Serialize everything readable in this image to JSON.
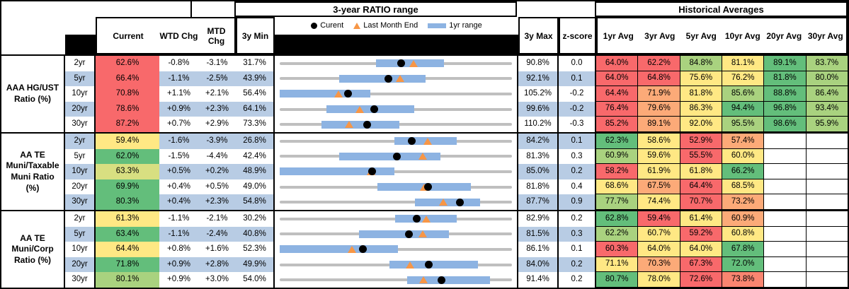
{
  "header": {
    "chart_group_title": "3-year RATIO range",
    "hist_group_title": "Historical Averages",
    "col_current": "Current",
    "col_wtd": "WTD Chg",
    "col_mtd": "MTD Chg",
    "col_3y_min": "3y Min",
    "col_3y_max": "3y Max",
    "col_zscore": "z-score",
    "avg_cols": [
      "1yr Avg",
      "3yr Avg",
      "5yr Avg",
      "10yr Avg",
      "20yr Avg",
      "30yr Avg"
    ],
    "legend": {
      "current_label": "Curent",
      "last_month_label": "Last Month End",
      "range_label": "1yr range"
    }
  },
  "colors": {
    "heatmap": {
      "red": "#f8696b",
      "orangered": "#f98570",
      "orange": "#fcaa78",
      "yellow": "#ffe884",
      "ygreen": "#d8df81",
      "lgreen": "#a9d27f",
      "green": "#63be7b"
    },
    "stripe": "#b8cce4",
    "track_gray": "#bfbfbf",
    "range_bar_blue": "#8db3e2",
    "triangle_orange": "#f79646",
    "marker_black": "#000000"
  },
  "chart_data": {
    "type": "table",
    "note": "Each row has a dot plot: axis spans chart.min..chart.max (3y range); bar = 1yr range (r1s..r1e); dot = current (cur); triangle = last month end (lme). Values in percent.",
    "groups": [
      {
        "label": "AAA HG/UST Ratio (%)",
        "label_lines": [
          "AAA HG/UST",
          "Ratio (%)"
        ],
        "rows": [
          {
            "tenor": "2yr",
            "current": "62.6%",
            "current_color": "red",
            "wtd": "-0.8%",
            "mtd": "-3.1%",
            "min": "31.7%",
            "max": "90.8%",
            "z": "0.0",
            "chart": {
              "min": 31.7,
              "max": 90.8,
              "cur": 62.6,
              "lme": 65.7,
              "r1s": 56.2,
              "r1e": 73.5
            },
            "avgs": [
              {
                "v": "64.0%",
                "c": "red"
              },
              {
                "v": "62.2%",
                "c": "red"
              },
              {
                "v": "84.8%",
                "c": "lgreen"
              },
              {
                "v": "81.1%",
                "c": "yellow"
              },
              {
                "v": "89.1%",
                "c": "green"
              },
              {
                "v": "83.7%",
                "c": "lgreen"
              }
            ]
          },
          {
            "tenor": "5yr",
            "current": "66.4%",
            "current_color": "red",
            "wtd": "-1.1%",
            "mtd": "-2.5%",
            "min": "43.9%",
            "max": "92.1%",
            "z": "0.1",
            "chart": {
              "min": 43.9,
              "max": 92.1,
              "cur": 66.4,
              "lme": 68.9,
              "r1s": 56.2,
              "r1e": 74.2
            },
            "avgs": [
              {
                "v": "64.0%",
                "c": "red"
              },
              {
                "v": "64.8%",
                "c": "red"
              },
              {
                "v": "75.6%",
                "c": "yellow"
              },
              {
                "v": "76.2%",
                "c": "yellow"
              },
              {
                "v": "81.8%",
                "c": "green"
              },
              {
                "v": "80.0%",
                "c": "lgreen"
              }
            ]
          },
          {
            "tenor": "10yr",
            "current": "70.8%",
            "current_color": "red",
            "wtd": "+1.1%",
            "mtd": "+2.1%",
            "min": "56.4%",
            "max": "105.2%",
            "z": "-0.2",
            "chart": {
              "min": 56.4,
              "max": 105.2,
              "cur": 70.8,
              "lme": 68.7,
              "r1s": 56.4,
              "r1e": 75.4
            },
            "avgs": [
              {
                "v": "64.4%",
                "c": "red"
              },
              {
                "v": "71.9%",
                "c": "orange"
              },
              {
                "v": "81.8%",
                "c": "yellow"
              },
              {
                "v": "85.6%",
                "c": "lgreen"
              },
              {
                "v": "88.8%",
                "c": "green"
              },
              {
                "v": "86.4%",
                "c": "lgreen"
              }
            ]
          },
          {
            "tenor": "20yr",
            "current": "78.6%",
            "current_color": "red",
            "wtd": "+0.9%",
            "mtd": "+2.3%",
            "min": "64.1%",
            "max": "99.6%",
            "z": "-0.2",
            "chart": {
              "min": 64.1,
              "max": 99.6,
              "cur": 78.6,
              "lme": 76.3,
              "r1s": 71.2,
              "r1e": 84.7
            },
            "avgs": [
              {
                "v": "76.4%",
                "c": "red"
              },
              {
                "v": "79.6%",
                "c": "orange"
              },
              {
                "v": "86.3%",
                "c": "yellow"
              },
              {
                "v": "94.4%",
                "c": "green"
              },
              {
                "v": "96.8%",
                "c": "green"
              },
              {
                "v": "93.4%",
                "c": "lgreen"
              }
            ]
          },
          {
            "tenor": "30yr",
            "current": "87.2%",
            "current_color": "red",
            "wtd": "+0.7%",
            "mtd": "+2.9%",
            "min": "73.3%",
            "max": "110.2%",
            "z": "-0.3",
            "chart": {
              "min": 73.3,
              "max": 110.2,
              "cur": 87.2,
              "lme": 84.3,
              "r1s": 80.0,
              "r1e": 92.3
            },
            "avgs": [
              {
                "v": "85.2%",
                "c": "red"
              },
              {
                "v": "89.1%",
                "c": "orange"
              },
              {
                "v": "92.0%",
                "c": "yellow"
              },
              {
                "v": "95.5%",
                "c": "lgreen"
              },
              {
                "v": "98.6%",
                "c": "green"
              },
              {
                "v": "95.9%",
                "c": "lgreen"
              }
            ]
          }
        ]
      },
      {
        "label": "AA TE Muni/Taxable Muni Ratio (%)",
        "label_lines": [
          "AA TE",
          "Muni/Taxable",
          "Muni Ratio",
          "(%)"
        ],
        "rows": [
          {
            "tenor": "2yr",
            "current": "59.4%",
            "current_color": "yellow",
            "wtd": "-1.6%",
            "mtd": "-3.9%",
            "min": "26.8%",
            "max": "84.2%",
            "z": "0.1",
            "chart": {
              "min": 26.8,
              "max": 84.2,
              "cur": 59.4,
              "lme": 63.3,
              "r1s": 55.2,
              "r1e": 70.5
            },
            "avgs": [
              {
                "v": "62.3%",
                "c": "green"
              },
              {
                "v": "58.6%",
                "c": "yellow"
              },
              {
                "v": "52.9%",
                "c": "red"
              },
              {
                "v": "57.4%",
                "c": "orange"
              },
              null,
              null
            ]
          },
          {
            "tenor": "5yr",
            "current": "62.0%",
            "current_color": "green",
            "wtd": "-1.5%",
            "mtd": "-4.4%",
            "min": "42.4%",
            "max": "81.3%",
            "z": "0.3",
            "chart": {
              "min": 42.4,
              "max": 81.3,
              "cur": 62.0,
              "lme": 66.4,
              "r1s": 52.4,
              "r1e": 69.3
            },
            "avgs": [
              {
                "v": "60.9%",
                "c": "lgreen"
              },
              {
                "v": "59.6%",
                "c": "yellow"
              },
              {
                "v": "55.5%",
                "c": "red"
              },
              {
                "v": "60.0%",
                "c": "yellow"
              },
              null,
              null
            ]
          },
          {
            "tenor": "10yr",
            "current": "63.3%",
            "current_color": "ygreen",
            "wtd": "+0.5%",
            "mtd": "+0.2%",
            "min": "48.9%",
            "max": "85.0%",
            "z": "0.2",
            "chart": {
              "min": 48.9,
              "max": 85.0,
              "cur": 63.3,
              "lme": 63.1,
              "r1s": 48.9,
              "r1e": 66.7
            },
            "avgs": [
              {
                "v": "58.2%",
                "c": "red"
              },
              {
                "v": "61.9%",
                "c": "yellow"
              },
              {
                "v": "61.8%",
                "c": "yellow"
              },
              {
                "v": "66.2%",
                "c": "green"
              },
              null,
              null
            ]
          },
          {
            "tenor": "20yr",
            "current": "69.9%",
            "current_color": "green",
            "wtd": "+0.4%",
            "mtd": "+0.5%",
            "min": "49.0%",
            "max": "81.8%",
            "z": "0.4",
            "chart": {
              "min": 49.0,
              "max": 81.8,
              "cur": 69.9,
              "lme": 69.4,
              "r1s": 62.8,
              "r1e": 76.0
            },
            "avgs": [
              {
                "v": "68.6%",
                "c": "yellow"
              },
              {
                "v": "67.5%",
                "c": "orange"
              },
              {
                "v": "64.4%",
                "c": "red"
              },
              {
                "v": "68.5%",
                "c": "yellow"
              },
              null,
              null
            ]
          },
          {
            "tenor": "30yr",
            "current": "80.3%",
            "current_color": "green",
            "wtd": "+0.4%",
            "mtd": "+2.3%",
            "min": "54.8%",
            "max": "87.7%",
            "z": "0.9",
            "chart": {
              "min": 54.8,
              "max": 87.7,
              "cur": 80.3,
              "lme": 78.0,
              "r1s": 74.0,
              "r1e": 83.2
            },
            "avgs": [
              {
                "v": "77.7%",
                "c": "lgreen"
              },
              {
                "v": "74.4%",
                "c": "yellow"
              },
              {
                "v": "70.7%",
                "c": "red"
              },
              {
                "v": "73.2%",
                "c": "orange"
              },
              null,
              null
            ]
          }
        ]
      },
      {
        "label": "AA TE Muni/Corp Ratio (%)",
        "label_lines": [
          "AA TE",
          "Muni/Corp",
          "Ratio (%)"
        ],
        "rows": [
          {
            "tenor": "2yr",
            "current": "61.3%",
            "current_color": "yellow",
            "wtd": "-1.1%",
            "mtd": "-2.1%",
            "min": "30.2%",
            "max": "82.9%",
            "z": "0.2",
            "chart": {
              "min": 30.2,
              "max": 82.9,
              "cur": 61.3,
              "lme": 63.4,
              "r1s": 56.4,
              "r1e": 70.4
            },
            "avgs": [
              {
                "v": "62.8%",
                "c": "green"
              },
              {
                "v": "59.4%",
                "c": "red"
              },
              {
                "v": "61.4%",
                "c": "yellow"
              },
              {
                "v": "60.9%",
                "c": "orange"
              },
              null,
              null
            ]
          },
          {
            "tenor": "5yr",
            "current": "63.4%",
            "current_color": "green",
            "wtd": "-1.1%",
            "mtd": "-2.4%",
            "min": "40.8%",
            "max": "81.5%",
            "z": "0.3",
            "chart": {
              "min": 40.8,
              "max": 81.5,
              "cur": 63.4,
              "lme": 65.8,
              "r1s": 54.7,
              "r1e": 70.4
            },
            "avgs": [
              {
                "v": "62.2%",
                "c": "lgreen"
              },
              {
                "v": "60.7%",
                "c": "yellow"
              },
              {
                "v": "59.2%",
                "c": "red"
              },
              {
                "v": "60.8%",
                "c": "yellow"
              },
              null,
              null
            ]
          },
          {
            "tenor": "10yr",
            "current": "64.4%",
            "current_color": "yellow",
            "wtd": "+0.8%",
            "mtd": "+1.6%",
            "min": "52.3%",
            "max": "86.1%",
            "z": "0.1",
            "chart": {
              "min": 52.3,
              "max": 86.1,
              "cur": 64.4,
              "lme": 62.8,
              "r1s": 52.3,
              "r1e": 69.5
            },
            "avgs": [
              {
                "v": "60.3%",
                "c": "red"
              },
              {
                "v": "64.0%",
                "c": "yellow"
              },
              {
                "v": "64.0%",
                "c": "yellow"
              },
              {
                "v": "67.8%",
                "c": "green"
              },
              null,
              null
            ]
          },
          {
            "tenor": "20yr",
            "current": "71.8%",
            "current_color": "green",
            "wtd": "+0.9%",
            "mtd": "+2.8%",
            "min": "49.9%",
            "max": "84.0%",
            "z": "0.2",
            "chart": {
              "min": 49.9,
              "max": 84.0,
              "cur": 71.8,
              "lme": 69.0,
              "r1s": 66.0,
              "r1e": 79.0
            },
            "avgs": [
              {
                "v": "71.1%",
                "c": "yellow"
              },
              {
                "v": "70.3%",
                "c": "orange"
              },
              {
                "v": "67.3%",
                "c": "red"
              },
              {
                "v": "72.0%",
                "c": "green"
              },
              null,
              null
            ]
          },
          {
            "tenor": "30yr",
            "current": "80.1%",
            "current_color": "lgreen",
            "wtd": "+0.9%",
            "mtd": "+3.0%",
            "min": "54.0%",
            "max": "91.4%",
            "z": "0.2",
            "chart": {
              "min": 54.0,
              "max": 91.4,
              "cur": 80.1,
              "lme": 77.1,
              "r1s": 74.5,
              "r1e": 87.8
            },
            "avgs": [
              {
                "v": "80.7%",
                "c": "green"
              },
              {
                "v": "78.0%",
                "c": "yellow"
              },
              {
                "v": "72.6%",
                "c": "red"
              },
              {
                "v": "73.8%",
                "c": "orangered"
              },
              null,
              null
            ]
          }
        ]
      }
    ]
  }
}
